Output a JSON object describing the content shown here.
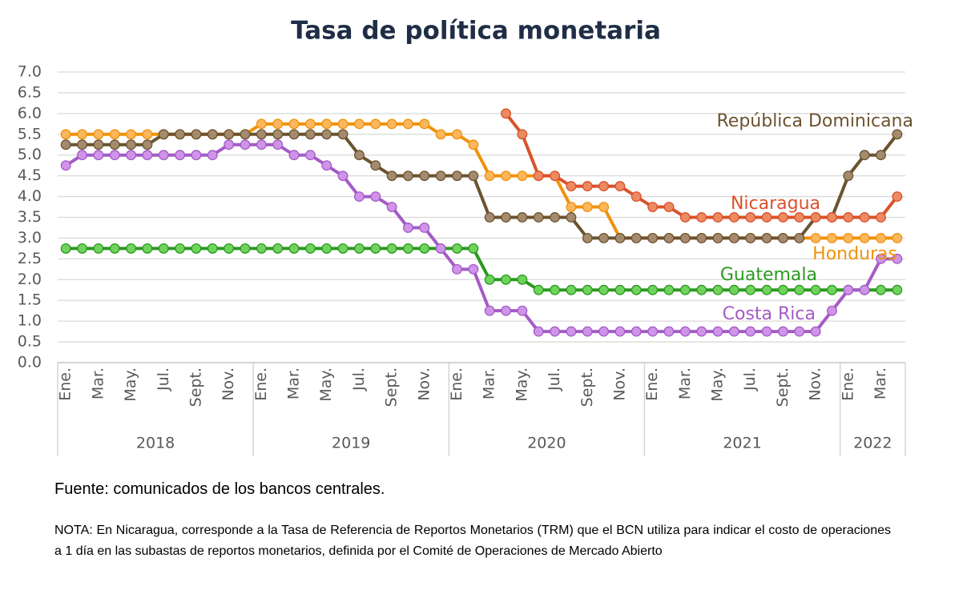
{
  "chart_data": {
    "type": "line",
    "title": "Tasa de política monetaria",
    "categories": [
      "Ene.",
      null,
      "Mar.",
      null,
      "May.",
      null,
      "Jul.",
      null,
      "Sept.",
      null,
      "Nov.",
      null,
      "Ene.",
      null,
      "Mar.",
      null,
      "May.",
      null,
      "Jul.",
      null,
      "Sept.",
      null,
      "Nov.",
      null,
      "Ene.",
      null,
      "Mar.",
      null,
      "May.",
      null,
      "Jul.",
      null,
      "Sept.",
      null,
      "Nov.",
      null,
      "Ene.",
      null,
      "Mar.",
      null,
      "May.",
      null,
      "Jul.",
      null,
      "Sept.",
      null,
      "Nov.",
      null,
      "Ene.",
      null,
      "Mar.",
      null
    ],
    "years": [
      "2018",
      "2019",
      "2020",
      "2021",
      "2022"
    ],
    "ylim": [
      0,
      7
    ],
    "yticks": [
      {
        "value": 0,
        "label": "0.0"
      },
      0.5,
      {
        "value": 1,
        "label": "1.0"
      },
      1.5,
      {
        "value": 2,
        "label": "2.0"
      },
      2.5,
      {
        "value": 3,
        "label": "3.0"
      },
      3.5,
      {
        "value": 4,
        "label": "4.0"
      },
      4.5,
      {
        "value": 5,
        "label": "5.0"
      },
      5.5,
      {
        "value": 6,
        "label": "6.0"
      },
      6.5,
      {
        "value": 7,
        "label": "7.0"
      }
    ],
    "grid": true,
    "series": [
      {
        "name": "Guatemala",
        "color": "#2a9a1f",
        "marker_color": "#6fd35c",
        "values": [
          2.75,
          2.75,
          2.75,
          2.75,
          2.75,
          2.75,
          2.75,
          2.75,
          2.75,
          2.75,
          2.75,
          2.75,
          2.75,
          2.75,
          2.75,
          2.75,
          2.75,
          2.75,
          2.75,
          2.75,
          2.75,
          2.75,
          2.75,
          2.75,
          2.75,
          2.75,
          2.0,
          2.0,
          2.0,
          1.75,
          1.75,
          1.75,
          1.75,
          1.75,
          1.75,
          1.75,
          1.75,
          1.75,
          1.75,
          1.75,
          1.75,
          1.75,
          1.75,
          1.75,
          1.75,
          1.75,
          1.75,
          1.75,
          1.75,
          1.75,
          1.75,
          1.75
        ]
      },
      {
        "name": "Costa Rica",
        "color": "#a45bc6",
        "marker_color": "#cf94e8",
        "values": [
          4.75,
          5,
          5,
          5,
          5,
          5,
          5,
          5,
          5,
          5,
          5.25,
          5.25,
          5.25,
          5.25,
          5,
          5,
          4.75,
          4.5,
          4,
          4,
          3.75,
          3.25,
          3.25,
          2.75,
          2.25,
          2.25,
          1.25,
          1.25,
          1.25,
          0.75,
          0.75,
          0.75,
          0.75,
          0.75,
          0.75,
          0.75,
          0.75,
          0.75,
          0.75,
          0.75,
          0.75,
          0.75,
          0.75,
          0.75,
          0.75,
          0.75,
          0.75,
          1.25,
          1.75,
          1.75,
          2.5,
          2.5
        ]
      },
      {
        "name": "Honduras",
        "color": "#f0920a",
        "marker_color": "#fbb65e",
        "values": [
          5.5,
          5.5,
          5.5,
          5.5,
          5.5,
          5.5,
          5.5,
          5.5,
          5.5,
          5.5,
          5.5,
          5.5,
          5.75,
          5.75,
          5.75,
          5.75,
          5.75,
          5.75,
          5.75,
          5.75,
          5.75,
          5.75,
          5.75,
          5.5,
          5.5,
          5.25,
          4.5,
          4.5,
          4.5,
          4.5,
          4.5,
          3.75,
          3.75,
          3.75,
          3,
          3,
          3,
          3,
          3,
          3,
          3,
          3,
          3,
          3,
          3,
          3,
          3,
          3,
          3,
          3,
          3,
          3
        ]
      },
      {
        "name": "República Dominicana",
        "color": "#6b5330",
        "marker_color": "#a48b6e",
        "values": [
          5.25,
          5.25,
          5.25,
          5.25,
          5.25,
          5.25,
          5.5,
          5.5,
          5.5,
          5.5,
          5.5,
          5.5,
          5.5,
          5.5,
          5.5,
          5.5,
          5.5,
          5.5,
          5,
          4.75,
          4.5,
          4.5,
          4.5,
          4.5,
          4.5,
          4.5,
          3.5,
          3.5,
          3.5,
          3.5,
          3.5,
          3.5,
          3,
          3,
          3,
          3,
          3,
          3,
          3,
          3,
          3,
          3,
          3,
          3,
          3,
          3,
          3.5,
          3.5,
          4.5,
          5,
          5,
          5.5
        ]
      },
      {
        "name": "Nicaragua",
        "color": "#d9522b",
        "marker_color": "#ec8a62",
        "values": [
          null,
          null,
          null,
          null,
          null,
          null,
          null,
          null,
          null,
          null,
          null,
          null,
          null,
          null,
          null,
          null,
          null,
          null,
          null,
          null,
          null,
          null,
          null,
          null,
          null,
          null,
          null,
          6,
          5.5,
          4.5,
          4.5,
          4.25,
          4.25,
          4.25,
          4.25,
          4,
          3.75,
          3.75,
          3.5,
          3.5,
          3.5,
          3.5,
          3.5,
          3.5,
          3.5,
          3.5,
          3.5,
          3.5,
          3.5,
          3.5,
          3.5,
          4
        ]
      }
    ]
  },
  "source": "Fuente: comunicados de los bancos centrales.",
  "note": "NOTA: En Nicaragua, corresponde a la Tasa de Referencia de Reportos Monetarios (TRM) que el BCN utiliza para indicar el costo de operaciones a 1 día en las subastas de reportos monetarios, definida por el Comité de Operaciones de Mercado Abierto"
}
